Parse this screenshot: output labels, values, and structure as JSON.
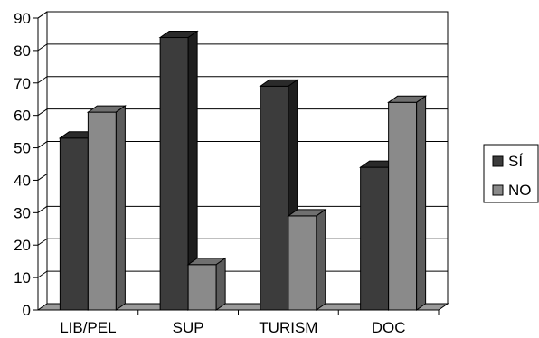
{
  "chart_data": {
    "type": "bar",
    "title": "",
    "xlabel": "",
    "ylabel": "",
    "categories": [
      "LIB/PEL",
      "SUP",
      "TURISM",
      "DOC"
    ],
    "series": [
      {
        "name": "SÍ",
        "values": [
          53,
          84,
          69,
          44
        ]
      },
      {
        "name": "NO",
        "values": [
          61,
          14,
          29,
          64
        ]
      }
    ],
    "ylim": [
      0,
      90
    ],
    "yticks": [
      "0",
      "10",
      "20",
      "30",
      "40",
      "50",
      "60",
      "70",
      "80",
      "90"
    ],
    "grid": true,
    "legend_position": "right",
    "style": "3d",
    "colors": {
      "SÍ": "#3c3c3c",
      "NO": "#8a8a8a"
    }
  }
}
